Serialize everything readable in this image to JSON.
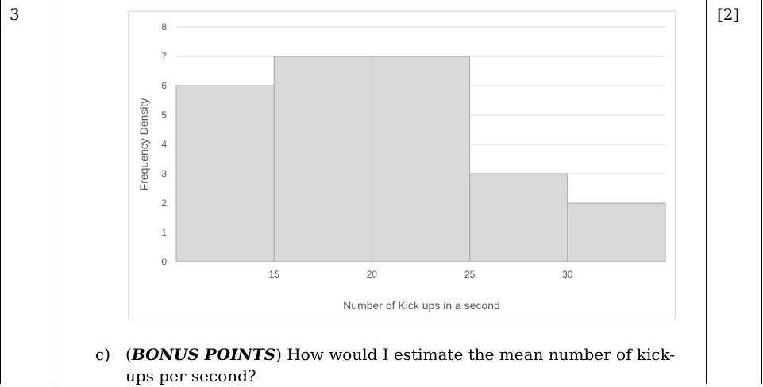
{
  "question": {
    "number": "3",
    "marks": "[2]",
    "part_label": "c)",
    "bonus_open": "(",
    "bonus": "BONUS POINTS",
    "bonus_close": ")",
    "text": " How would I estimate the mean number of kick-ups per second?"
  },
  "chart_data": {
    "type": "histogram",
    "xlabel": "Number of Kick ups in a second",
    "ylabel": "Frequency Density",
    "bins": [
      {
        "from": 10,
        "to": 15,
        "value": 6
      },
      {
        "from": 15,
        "to": 20,
        "value": 7
      },
      {
        "from": 20,
        "to": 25,
        "value": 7
      },
      {
        "from": 25,
        "to": 30,
        "value": 3
      },
      {
        "from": 30,
        "to": 35,
        "value": 2
      }
    ],
    "xlim": [
      10,
      35
    ],
    "xticks": [
      15,
      20,
      25,
      30
    ],
    "ylim": [
      0,
      8
    ],
    "yticks": [
      0,
      1,
      2,
      3,
      4,
      5,
      6,
      7,
      8
    ],
    "grid": true,
    "bar_color": "#d9d9d9",
    "bar_edge_color": "#a6a6a6",
    "grid_color": "#d9d9d9"
  }
}
